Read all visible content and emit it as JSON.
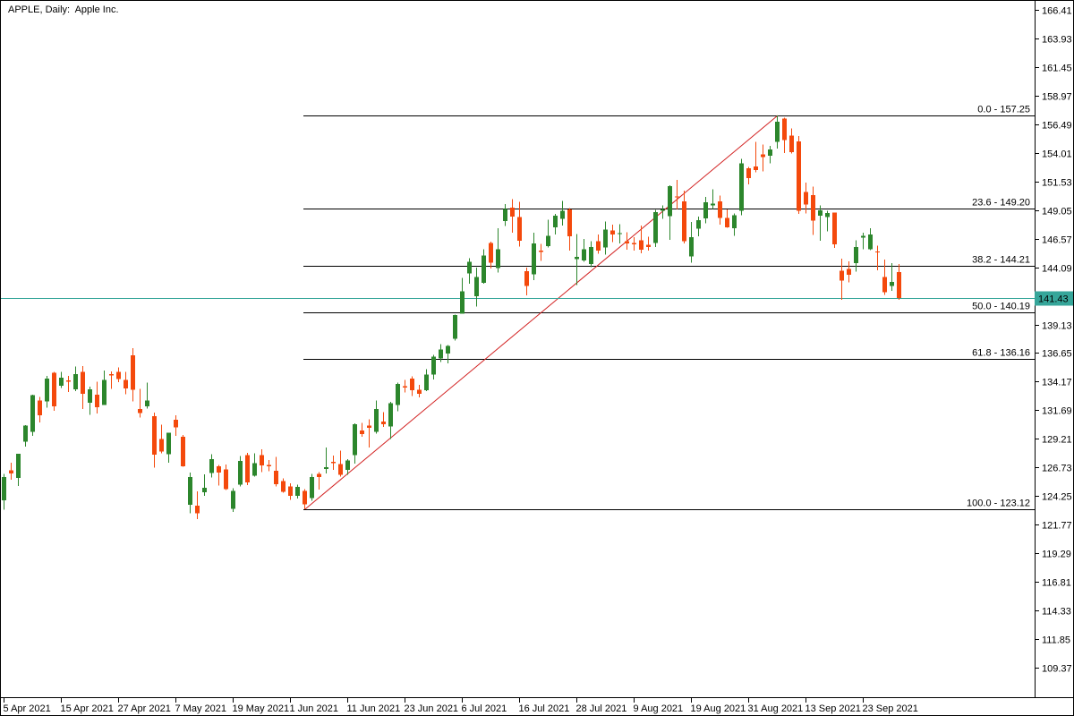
{
  "header": {
    "title": "APPLE, Daily:  Apple Inc."
  },
  "colors": {
    "bull": "#2c862c",
    "bear": "#f4490c",
    "trend_line": "#d22020",
    "current_price_line": "#36a69a",
    "fib_line": "#000000",
    "axis_text": "#000000",
    "background": "#ffffff"
  },
  "current_price": {
    "value": "141.43"
  },
  "y_axis": {
    "tick_labels": [
      "166.41",
      "163.93",
      "161.45",
      "158.97",
      "156.49",
      "154.01",
      "151.53",
      "149.05",
      "146.57",
      "144.09",
      "139.13",
      "136.65",
      "134.17",
      "131.69",
      "129.21",
      "126.73",
      "124.25",
      "121.77",
      "119.29",
      "116.81",
      "114.33",
      "111.85",
      "109.37"
    ]
  },
  "x_axis": {
    "tick_labels": [
      {
        "label": "5 Apr 2021",
        "index": 0
      },
      {
        "label": "15 Apr 2021",
        "index": 8
      },
      {
        "label": "27 Apr 2021",
        "index": 16
      },
      {
        "label": "7 May 2021",
        "index": 24
      },
      {
        "label": "19 May 2021",
        "index": 32
      },
      {
        "label": "1 Jun 2021",
        "index": 40
      },
      {
        "label": "11 Jun 2021",
        "index": 48
      },
      {
        "label": "23 Jun 2021",
        "index": 56
      },
      {
        "label": "6 Jul 2021",
        "index": 64
      },
      {
        "label": "16 Jul 2021",
        "index": 72
      },
      {
        "label": "28 Jul 2021",
        "index": 80
      },
      {
        "label": "9 Aug 2021",
        "index": 88
      },
      {
        "label": "19 Aug 2021",
        "index": 96
      },
      {
        "label": "31 Aug 2021",
        "index": 104
      },
      {
        "label": "13 Sep 2021",
        "index": 112
      },
      {
        "label": "23 Sep 2021",
        "index": 120
      }
    ]
  },
  "fibonacci": {
    "anchor_start": {
      "candle_index": 42,
      "price": 123.12
    },
    "anchor_end": {
      "candle_index": 108,
      "price": 157.25
    },
    "levels": [
      {
        "label": "0.0 - 157.25",
        "price": 157.25
      },
      {
        "label": "23.6 - 149.20",
        "price": 149.2
      },
      {
        "label": "38.2 - 144.21",
        "price": 144.21
      },
      {
        "label": "50.0 - 140.19",
        "price": 140.19
      },
      {
        "label": "61.8 - 136.16",
        "price": 136.16
      },
      {
        "label": "100.0 - 123.12",
        "price": 123.12
      }
    ]
  },
  "chart_data": {
    "type": "candlestick",
    "symbol": "APPLE",
    "timeframe": "Daily",
    "company": "Apple Inc.",
    "ylim": [
      108.1,
      167.2
    ],
    "grid": false,
    "current_price": 141.43,
    "candles": [
      [
        "5 Apr 2021",
        123.87,
        126.16,
        123.07,
        125.9
      ],
      [
        "6 Apr 2021",
        126.5,
        127.13,
        125.65,
        126.21
      ],
      [
        "7 Apr 2021",
        125.83,
        127.92,
        125.14,
        127.9
      ],
      [
        "8 Apr 2021",
        128.95,
        130.39,
        128.52,
        130.36
      ],
      [
        "9 Apr 2021",
        129.8,
        133.04,
        129.47,
        133.0
      ],
      [
        "12 Apr 2021",
        132.52,
        132.85,
        130.63,
        131.24
      ],
      [
        "13 Apr 2021",
        132.44,
        134.66,
        131.93,
        134.43
      ],
      [
        "14 Apr 2021",
        134.94,
        135.0,
        131.66,
        132.03
      ],
      [
        "15 Apr 2021",
        133.82,
        135.0,
        133.64,
        134.5
      ],
      [
        "16 Apr 2021",
        134.3,
        134.67,
        133.28,
        134.16
      ],
      [
        "19 Apr 2021",
        133.51,
        135.47,
        133.34,
        134.84
      ],
      [
        "20 Apr 2021",
        135.02,
        135.53,
        131.81,
        133.11
      ],
      [
        "21 Apr 2021",
        132.36,
        133.75,
        131.3,
        133.5
      ],
      [
        "22 Apr 2021",
        133.04,
        134.15,
        131.41,
        131.94
      ],
      [
        "23 Apr 2021",
        132.16,
        135.12,
        132.16,
        134.32
      ],
      [
        "26 Apr 2021",
        134.83,
        135.06,
        133.56,
        134.72
      ],
      [
        "27 Apr 2021",
        135.01,
        135.41,
        134.11,
        134.39
      ],
      [
        "28 Apr 2021",
        134.31,
        135.02,
        133.08,
        133.58
      ],
      [
        "29 Apr 2021",
        136.47,
        137.07,
        132.45,
        133.48
      ],
      [
        "30 Apr 2021",
        131.78,
        133.56,
        131.07,
        131.46
      ],
      [
        "3 May 2021",
        132.04,
        134.07,
        131.83,
        132.54
      ],
      [
        "4 May 2021",
        131.19,
        131.49,
        126.7,
        127.85
      ],
      [
        "5 May 2021",
        129.2,
        130.45,
        127.97,
        128.1
      ],
      [
        "6 May 2021",
        127.89,
        129.75,
        127.13,
        129.74
      ],
      [
        "7 May 2021",
        130.85,
        131.26,
        129.48,
        130.21
      ],
      [
        "10 May 2021",
        129.41,
        129.54,
        126.81,
        126.85
      ],
      [
        "11 May 2021",
        123.5,
        126.27,
        122.77,
        125.91
      ],
      [
        "12 May 2021",
        123.4,
        124.64,
        122.25,
        122.77
      ],
      [
        "13 May 2021",
        124.58,
        126.15,
        124.26,
        124.97
      ],
      [
        "14 May 2021",
        126.25,
        127.89,
        125.85,
        127.45
      ],
      [
        "17 May 2021",
        126.82,
        126.93,
        125.17,
        126.27
      ],
      [
        "18 May 2021",
        126.56,
        126.99,
        124.78,
        124.85
      ],
      [
        "19 May 2021",
        123.16,
        124.92,
        122.86,
        124.69
      ],
      [
        "20 May 2021",
        125.23,
        127.72,
        125.1,
        127.31
      ],
      [
        "21 May 2021",
        127.82,
        128.0,
        125.21,
        125.43
      ],
      [
        "24 May 2021",
        126.01,
        127.94,
        125.94,
        127.1
      ],
      [
        "25 May 2021",
        127.82,
        128.32,
        126.32,
        126.9
      ],
      [
        "26 May 2021",
        126.96,
        127.39,
        126.42,
        126.85
      ],
      [
        "27 May 2021",
        126.44,
        127.64,
        125.08,
        125.28
      ],
      [
        "28 May 2021",
        125.57,
        125.8,
        124.55,
        124.61
      ],
      [
        "1 Jun 2021",
        125.08,
        125.35,
        123.94,
        124.28
      ],
      [
        "2 Jun 2021",
        124.28,
        125.24,
        124.05,
        125.06
      ],
      [
        "3 Jun 2021",
        124.68,
        124.85,
        123.12,
        123.54
      ],
      [
        "4 Jun 2021",
        124.07,
        126.16,
        123.85,
        125.89
      ],
      [
        "7 Jun 2021",
        126.17,
        126.32,
        124.83,
        125.9
      ],
      [
        "8 Jun 2021",
        126.6,
        128.46,
        126.21,
        126.74
      ],
      [
        "9 Jun 2021",
        127.21,
        127.75,
        126.52,
        127.13
      ],
      [
        "10 Jun 2021",
        127.02,
        128.19,
        125.94,
        126.11
      ],
      [
        "11 Jun 2021",
        126.53,
        127.44,
        126.1,
        127.35
      ],
      [
        "14 Jun 2021",
        127.82,
        130.54,
        127.07,
        130.48
      ],
      [
        "15 Jun 2021",
        129.94,
        130.6,
        129.39,
        129.64
      ],
      [
        "16 Jun 2021",
        130.37,
        130.89,
        128.46,
        130.15
      ],
      [
        "17 Jun 2021",
        129.8,
        132.55,
        129.65,
        131.79
      ],
      [
        "18 Jun 2021",
        130.71,
        131.51,
        130.24,
        130.46
      ],
      [
        "21 Jun 2021",
        130.3,
        132.41,
        129.21,
        132.3
      ],
      [
        "22 Jun 2021",
        132.13,
        134.08,
        131.62,
        133.98
      ],
      [
        "23 Jun 2021",
        133.77,
        134.32,
        133.23,
        133.7
      ],
      [
        "24 Jun 2021",
        134.45,
        134.64,
        132.93,
        133.41
      ],
      [
        "25 Jun 2021",
        133.46,
        133.89,
        132.81,
        133.11
      ],
      [
        "28 Jun 2021",
        133.41,
        135.25,
        133.35,
        134.78
      ],
      [
        "29 Jun 2021",
        134.8,
        136.49,
        134.35,
        136.33
      ],
      [
        "30 Jun 2021",
        136.17,
        137.41,
        135.87,
        136.96
      ],
      [
        "1 Jul 2021",
        136.6,
        137.33,
        135.76,
        137.27
      ],
      [
        "2 Jul 2021",
        137.9,
        140.0,
        137.75,
        139.96
      ],
      [
        "6 Jul 2021",
        140.07,
        143.15,
        140.07,
        142.02
      ],
      [
        "7 Jul 2021",
        143.54,
        144.89,
        142.66,
        144.57
      ],
      [
        "8 Jul 2021",
        141.58,
        144.06,
        140.67,
        143.24
      ],
      [
        "9 Jul 2021",
        142.75,
        145.65,
        142.65,
        145.11
      ],
      [
        "12 Jul 2021",
        146.21,
        146.32,
        144.0,
        144.5
      ],
      [
        "13 Jul 2021",
        144.03,
        147.46,
        143.63,
        145.64
      ],
      [
        "14 Jul 2021",
        148.1,
        149.57,
        147.68,
        149.15
      ],
      [
        "15 Jul 2021",
        149.24,
        150.0,
        147.09,
        148.48
      ],
      [
        "16 Jul 2021",
        148.46,
        149.76,
        145.88,
        146.39
      ],
      [
        "19 Jul 2021",
        143.75,
        144.07,
        141.67,
        142.45
      ],
      [
        "20 Jul 2021",
        143.46,
        147.1,
        142.96,
        146.15
      ],
      [
        "21 Jul 2021",
        145.53,
        146.13,
        144.63,
        145.4
      ],
      [
        "22 Jul 2021",
        145.94,
        148.2,
        145.81,
        146.8
      ],
      [
        "23 Jul 2021",
        147.55,
        148.72,
        146.92,
        148.56
      ],
      [
        "26 Jul 2021",
        148.27,
        149.83,
        147.7,
        148.99
      ],
      [
        "27 Jul 2021",
        149.12,
        149.21,
        145.55,
        146.77
      ],
      [
        "28 Jul 2021",
        144.81,
        146.97,
        142.54,
        144.98
      ],
      [
        "29 Jul 2021",
        144.69,
        146.55,
        144.58,
        145.64
      ],
      [
        "30 Jul 2021",
        144.38,
        146.33,
        144.11,
        145.86
      ],
      [
        "2 Aug 2021",
        146.36,
        146.95,
        145.25,
        145.52
      ],
      [
        "3 Aug 2021",
        145.81,
        148.04,
        145.18,
        147.36
      ],
      [
        "4 Aug 2021",
        147.27,
        147.79,
        146.28,
        146.95
      ],
      [
        "5 Aug 2021",
        146.98,
        147.84,
        146.17,
        147.06
      ],
      [
        "6 Aug 2021",
        146.35,
        147.11,
        145.63,
        146.14
      ],
      [
        "9 Aug 2021",
        146.2,
        146.7,
        145.52,
        146.09
      ],
      [
        "10 Aug 2021",
        146.44,
        147.71,
        145.3,
        145.6
      ],
      [
        "11 Aug 2021",
        146.05,
        146.72,
        145.53,
        145.86
      ],
      [
        "12 Aug 2021",
        146.19,
        149.05,
        145.84,
        148.89
      ],
      [
        "13 Aug 2021",
        148.97,
        149.44,
        148.27,
        149.1
      ],
      [
        "16 Aug 2021",
        148.54,
        151.19,
        146.47,
        151.12
      ],
      [
        "17 Aug 2021",
        150.23,
        151.68,
        149.09,
        150.19
      ],
      [
        "18 Aug 2021",
        149.8,
        150.72,
        146.15,
        146.36
      ],
      [
        "19 Aug 2021",
        145.03,
        148.0,
        144.5,
        146.7
      ],
      [
        "20 Aug 2021",
        147.44,
        148.5,
        146.78,
        148.19
      ],
      [
        "23 Aug 2021",
        148.31,
        150.19,
        147.89,
        149.71
      ],
      [
        "24 Aug 2021",
        149.45,
        150.86,
        149.15,
        149.62
      ],
      [
        "25 Aug 2021",
        149.81,
        150.32,
        147.8,
        148.36
      ],
      [
        "26 Aug 2021",
        148.35,
        149.12,
        147.51,
        147.54
      ],
      [
        "27 Aug 2021",
        147.48,
        148.75,
        146.83,
        148.6
      ],
      [
        "30 Aug 2021",
        149.0,
        153.49,
        148.61,
        153.12
      ],
      [
        "31 Aug 2021",
        152.66,
        152.8,
        151.29,
        151.83
      ],
      [
        "1 Sep 2021",
        152.83,
        154.98,
        152.34,
        152.51
      ],
      [
        "2 Sep 2021",
        153.87,
        154.72,
        152.4,
        153.65
      ],
      [
        "3 Sep 2021",
        153.76,
        154.63,
        153.09,
        154.3
      ],
      [
        "7 Sep 2021",
        154.97,
        157.25,
        154.39,
        156.69
      ],
      [
        "8 Sep 2021",
        156.98,
        157.04,
        153.98,
        155.11
      ],
      [
        "9 Sep 2021",
        155.49,
        156.11,
        153.95,
        154.07
      ],
      [
        "10 Sep 2021",
        155.0,
        155.48,
        148.7,
        148.97
      ],
      [
        "13 Sep 2021",
        150.63,
        151.42,
        148.75,
        149.55
      ],
      [
        "14 Sep 2021",
        150.35,
        151.07,
        146.91,
        148.12
      ],
      [
        "15 Sep 2021",
        148.56,
        149.44,
        146.37,
        149.03
      ],
      [
        "16 Sep 2021",
        148.44,
        148.97,
        147.22,
        148.79
      ],
      [
        "17 Sep 2021",
        148.82,
        148.82,
        145.76,
        146.06
      ],
      [
        "20 Sep 2021",
        143.8,
        144.84,
        141.27,
        142.94
      ],
      [
        "21 Sep 2021",
        143.93,
        144.6,
        142.78,
        143.43
      ],
      [
        "22 Sep 2021",
        144.45,
        146.43,
        143.7,
        145.85
      ],
      [
        "23 Sep 2021",
        146.65,
        147.08,
        145.64,
        146.83
      ],
      [
        "24 Sep 2021",
        145.66,
        147.47,
        145.56,
        146.92
      ],
      [
        "27 Sep 2021",
        145.47,
        145.96,
        143.82,
        145.37
      ],
      [
        "28 Sep 2021",
        143.25,
        144.75,
        141.69,
        141.91
      ],
      [
        "29 Sep 2021",
        142.47,
        144.45,
        142.03,
        142.83
      ],
      [
        "30 Sep 2021",
        143.66,
        144.38,
        141.28,
        141.43
      ]
    ]
  }
}
